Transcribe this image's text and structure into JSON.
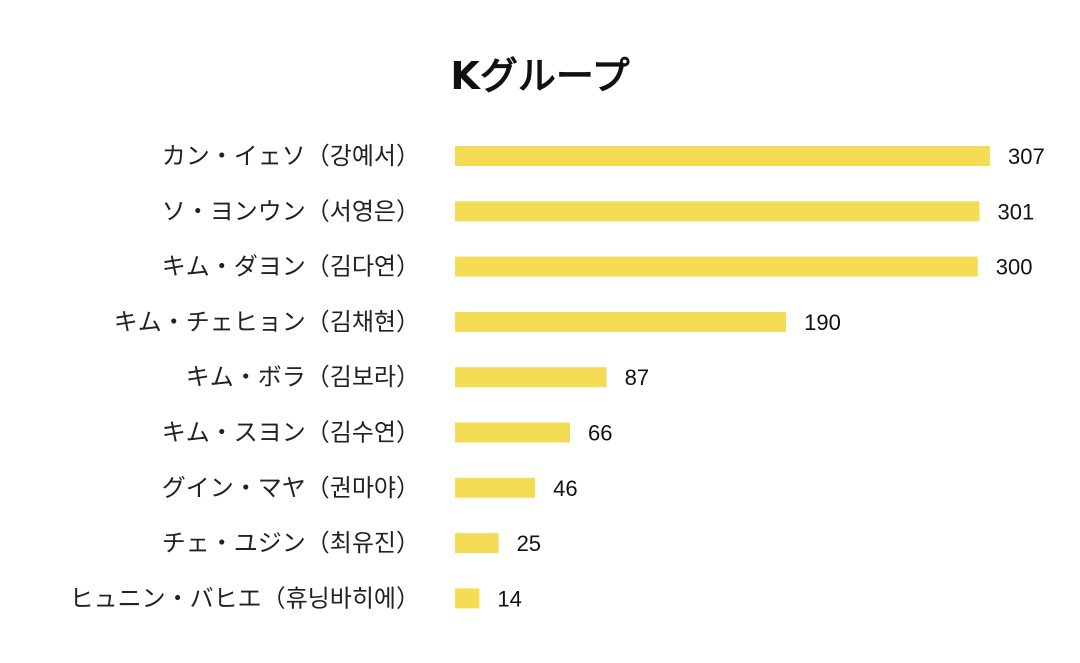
{
  "chart_data": {
    "type": "bar",
    "orientation": "horizontal",
    "title": "Kグループ",
    "categories": [
      "カン・イェソ（강예서）",
      "ソ・ヨンウン（서영은）",
      "キム・ダヨン（김다연）",
      "キム・チェヒョン（김채현）",
      "キム・ボラ（김보라）",
      "キム・スヨン（김수연）",
      "グイン・マヤ（권마야）",
      "チェ・ユジン（최유진）",
      "ヒュニン・バヒエ（휴닝바히에）"
    ],
    "values": [
      307,
      301,
      300,
      190,
      87,
      66,
      46,
      25,
      14
    ],
    "value_labels": [
      "307",
      "301",
      "300",
      "190",
      "87",
      "66",
      "46",
      "25",
      "14"
    ],
    "bar_color": "#F5DC55",
    "grid": false,
    "legend": "none",
    "xlim": [
      0,
      307
    ]
  }
}
